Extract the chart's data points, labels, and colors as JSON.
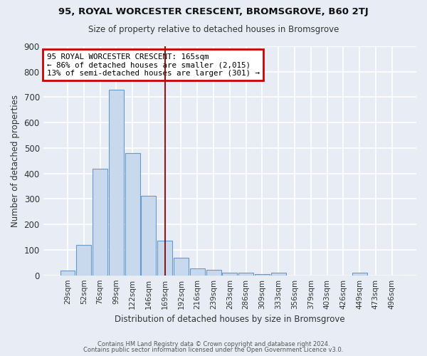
{
  "title1": "95, ROYAL WORCESTER CRESCENT, BROMSGROVE, B60 2TJ",
  "title2": "Size of property relative to detached houses in Bromsgrove",
  "xlabel": "Distribution of detached houses by size in Bromsgrove",
  "ylabel": "Number of detached properties",
  "bar_labels": [
    "29sqm",
    "52sqm",
    "76sqm",
    "99sqm",
    "122sqm",
    "146sqm",
    "169sqm",
    "192sqm",
    "216sqm",
    "239sqm",
    "263sqm",
    "286sqm",
    "309sqm",
    "333sqm",
    "356sqm",
    "379sqm",
    "403sqm",
    "426sqm",
    "449sqm",
    "473sqm",
    "496sqm"
  ],
  "bar_values": [
    20,
    120,
    418,
    730,
    480,
    313,
    135,
    68,
    28,
    22,
    11,
    10,
    4,
    10,
    0,
    0,
    0,
    0,
    10,
    0,
    0
  ],
  "bar_color": "#c8d9ee",
  "bar_edge_color": "#6699cc",
  "vline_x": 6.0,
  "vline_color": "#8b1a1a",
  "annotation_text": "95 ROYAL WORCESTER CRESCENT: 165sqm\n← 86% of detached houses are smaller (2,015)\n13% of semi-detached houses are larger (301) →",
  "annotation_box_color": "#ffffff",
  "annotation_box_edge": "#cc0000",
  "ylim": [
    0,
    900
  ],
  "yticks": [
    0,
    100,
    200,
    300,
    400,
    500,
    600,
    700,
    800,
    900
  ],
  "bg_color": "#e8edf5",
  "grid_color": "#ffffff",
  "footer1": "Contains HM Land Registry data © Crown copyright and database right 2024.",
  "footer2": "Contains public sector information licensed under the Open Government Licence v3.0."
}
